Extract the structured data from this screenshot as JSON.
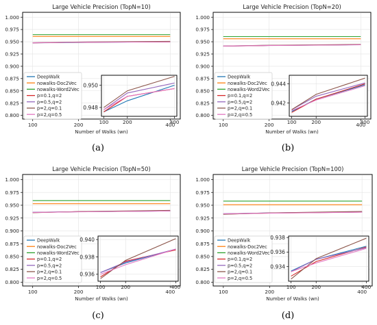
{
  "legend_labels": [
    "DeepWalk",
    "nowalks-Doc2Vec",
    "nowalks-Word2Vec",
    "p=0.1,q=2",
    "p=0.5,q=2",
    "p=2,q=0.1",
    "p=2,q=0.5"
  ],
  "colors": [
    "#1f77b4",
    "#ff7f0e",
    "#2ca02c",
    "#d62728",
    "#9467bd",
    "#8c564b",
    "#e377c2"
  ],
  "chart_data": [
    {
      "type": "line",
      "caption": "(a)",
      "title": "Large Vehicle Precision (TopN=10)",
      "xlabel": "Number of Walks (wn)",
      "ylabel": "",
      "x": [
        100,
        200,
        400
      ],
      "xticks": [
        100,
        200,
        400
      ],
      "ylim": [
        0.7925,
        1.01
      ],
      "yticks": [
        0.8,
        0.825,
        0.85,
        0.875,
        0.9,
        0.925,
        0.95,
        0.975,
        1.0
      ],
      "ytick_labels": [
        "0.800",
        "0.825",
        "0.850",
        "0.875",
        "0.900",
        "0.925",
        "0.950",
        "0.975",
        "1.000"
      ],
      "legend_position": "lower-left",
      "grid": true,
      "series": [
        {
          "name": "DeepWalk",
          "values": [
            0.9476,
            0.9486,
            0.95
          ]
        },
        {
          "name": "nowalks-Doc2Vec",
          "values": [
            0.961,
            0.961,
            0.961
          ]
        },
        {
          "name": "nowalks-Word2Vec",
          "values": [
            0.9645,
            0.9645,
            0.9645
          ]
        },
        {
          "name": "p=0.1,q=2",
          "values": [
            0.9476,
            0.949,
            0.9497
          ]
        },
        {
          "name": "p=0.5,q=2",
          "values": [
            0.9478,
            0.9493,
            0.9502
          ]
        },
        {
          "name": "p=2,q=0.1",
          "values": [
            0.948,
            0.9495,
            0.9508
          ]
        },
        {
          "name": "p=2,q=0.5",
          "values": [
            0.9478,
            0.949,
            0.9497
          ]
        }
      ],
      "inset": {
        "xlim": [
          90,
          410
        ],
        "ylim": [
          0.9472,
          0.9509
        ],
        "xticks": [
          100,
          200,
          400
        ],
        "yticks": [
          0.948,
          0.95
        ],
        "ytick_labels": [
          "0.948",
          "0.950"
        ]
      }
    },
    {
      "type": "line",
      "caption": "(b)",
      "title": "Large Vehicle Precision (TopN=20)",
      "xlabel": "Number of Walks (wn)",
      "ylabel": "",
      "x": [
        100,
        200,
        400
      ],
      "xticks": [
        100,
        200,
        400
      ],
      "ylim": [
        0.7925,
        1.01
      ],
      "yticks": [
        0.8,
        0.825,
        0.85,
        0.875,
        0.9,
        0.925,
        0.95,
        0.975,
        1.0
      ],
      "ytick_labels": [
        "0.800",
        "0.825",
        "0.850",
        "0.875",
        "0.900",
        "0.925",
        "0.950",
        "0.975",
        "1.000"
      ],
      "legend_position": "lower-left",
      "grid": true,
      "series": [
        {
          "name": "DeepWalk",
          "values": [
            0.9411,
            0.9424,
            0.9439
          ]
        },
        {
          "name": "nowalks-Doc2Vec",
          "values": [
            0.956,
            0.956,
            0.956
          ]
        },
        {
          "name": "nowalks-Word2Vec",
          "values": [
            0.9605,
            0.9605,
            0.9605
          ]
        },
        {
          "name": "p=0.1,q=2",
          "values": [
            0.941,
            0.9424,
            0.944
          ]
        },
        {
          "name": "p=0.5,q=2",
          "values": [
            0.9413,
            0.9427,
            0.9441
          ]
        },
        {
          "name": "p=2,q=0.1",
          "values": [
            0.9413,
            0.9429,
            0.9446
          ]
        },
        {
          "name": "p=2,q=0.5",
          "values": [
            0.9412,
            0.9423,
            0.9438
          ]
        }
      ],
      "inset": {
        "xlim": [
          90,
          410
        ],
        "ylim": [
          0.9406,
          0.9449
        ],
        "xticks": [
          100,
          200,
          400
        ],
        "yticks": [
          0.942,
          0.944
        ],
        "ytick_labels": [
          "0.942",
          "0.944"
        ]
      }
    },
    {
      "type": "line",
      "caption": "(c)",
      "title": "Large Vehicle Precision (TopN=50)",
      "xlabel": "Number of Walks (wn)",
      "ylabel": "",
      "x": [
        100,
        200,
        400
      ],
      "xticks": [
        100,
        200,
        400
      ],
      "ylim": [
        0.7925,
        1.01
      ],
      "yticks": [
        0.8,
        0.825,
        0.85,
        0.875,
        0.9,
        0.925,
        0.95,
        0.975,
        1.0
      ],
      "ytick_labels": [
        "0.800",
        "0.825",
        "0.850",
        "0.875",
        "0.900",
        "0.925",
        "0.950",
        "0.975",
        "1.000"
      ],
      "legend_position": "lower-left",
      "grid": true,
      "series": [
        {
          "name": "DeepWalk",
          "values": [
            0.9362,
            0.9373,
            0.9389
          ]
        },
        {
          "name": "nowalks-Doc2Vec",
          "values": [
            0.953,
            0.953,
            0.953
          ]
        },
        {
          "name": "nowalks-Word2Vec",
          "values": [
            0.959,
            0.959,
            0.959
          ]
        },
        {
          "name": "p=0.1,q=2",
          "values": [
            0.9357,
            0.9375,
            0.9388
          ]
        },
        {
          "name": "p=0.5,q=2",
          "values": [
            0.9362,
            0.9374,
            0.9389
          ]
        },
        {
          "name": "p=2,q=0.1",
          "values": [
            0.9355,
            0.9376,
            0.9401
          ]
        },
        {
          "name": "p=2,q=0.5",
          "values": [
            0.936,
            0.9371,
            0.9389
          ]
        }
      ],
      "inset": {
        "xlim": [
          90,
          410
        ],
        "ylim": [
          0.9352,
          0.9404
        ],
        "xticks": [
          100,
          200,
          400
        ],
        "yticks": [
          0.936,
          0.938,
          0.94
        ],
        "ytick_labels": [
          "0.936",
          "0.938",
          "0.940"
        ]
      }
    },
    {
      "type": "line",
      "caption": "(d)",
      "title": "Large Vehicle Precision (TopN=100)",
      "xlabel": "Number of Walks (wn)",
      "ylabel": "",
      "x": [
        100,
        200,
        400
      ],
      "xticks": [
        100,
        200,
        400
      ],
      "ylim": [
        0.7925,
        1.01
      ],
      "yticks": [
        0.8,
        0.825,
        0.85,
        0.875,
        0.9,
        0.925,
        0.95,
        0.975,
        1.0
      ],
      "ytick_labels": [
        "0.800",
        "0.825",
        "0.850",
        "0.875",
        "0.900",
        "0.925",
        "0.950",
        "0.975",
        "1.000"
      ],
      "legend_position": "lower-left",
      "grid": true,
      "series": [
        {
          "name": "DeepWalk",
          "values": [
            0.9334,
            0.935,
            0.9368
          ]
        },
        {
          "name": "nowalks-Doc2Vec",
          "values": [
            0.951,
            0.951,
            0.951
          ]
        },
        {
          "name": "nowalks-Word2Vec",
          "values": [
            0.958,
            0.958,
            0.958
          ]
        },
        {
          "name": "p=0.1,q=2",
          "values": [
            0.9327,
            0.9347,
            0.9367
          ]
        },
        {
          "name": "p=0.5,q=2",
          "values": [
            0.9333,
            0.935,
            0.9366
          ]
        },
        {
          "name": "p=2,q=0.1",
          "values": [
            0.9323,
            0.9351,
            0.9379
          ]
        },
        {
          "name": "p=2,q=0.5",
          "values": [
            0.9333,
            0.9345,
            0.9365
          ]
        }
      ],
      "inset": {
        "xlim": [
          90,
          410
        ],
        "ylim": [
          0.932,
          0.9382
        ],
        "xticks": [
          100,
          200,
          400
        ],
        "yticks": [
          0.934,
          0.936,
          0.938
        ],
        "ytick_labels": [
          "0.934",
          "0.936",
          "0.938"
        ]
      }
    }
  ]
}
